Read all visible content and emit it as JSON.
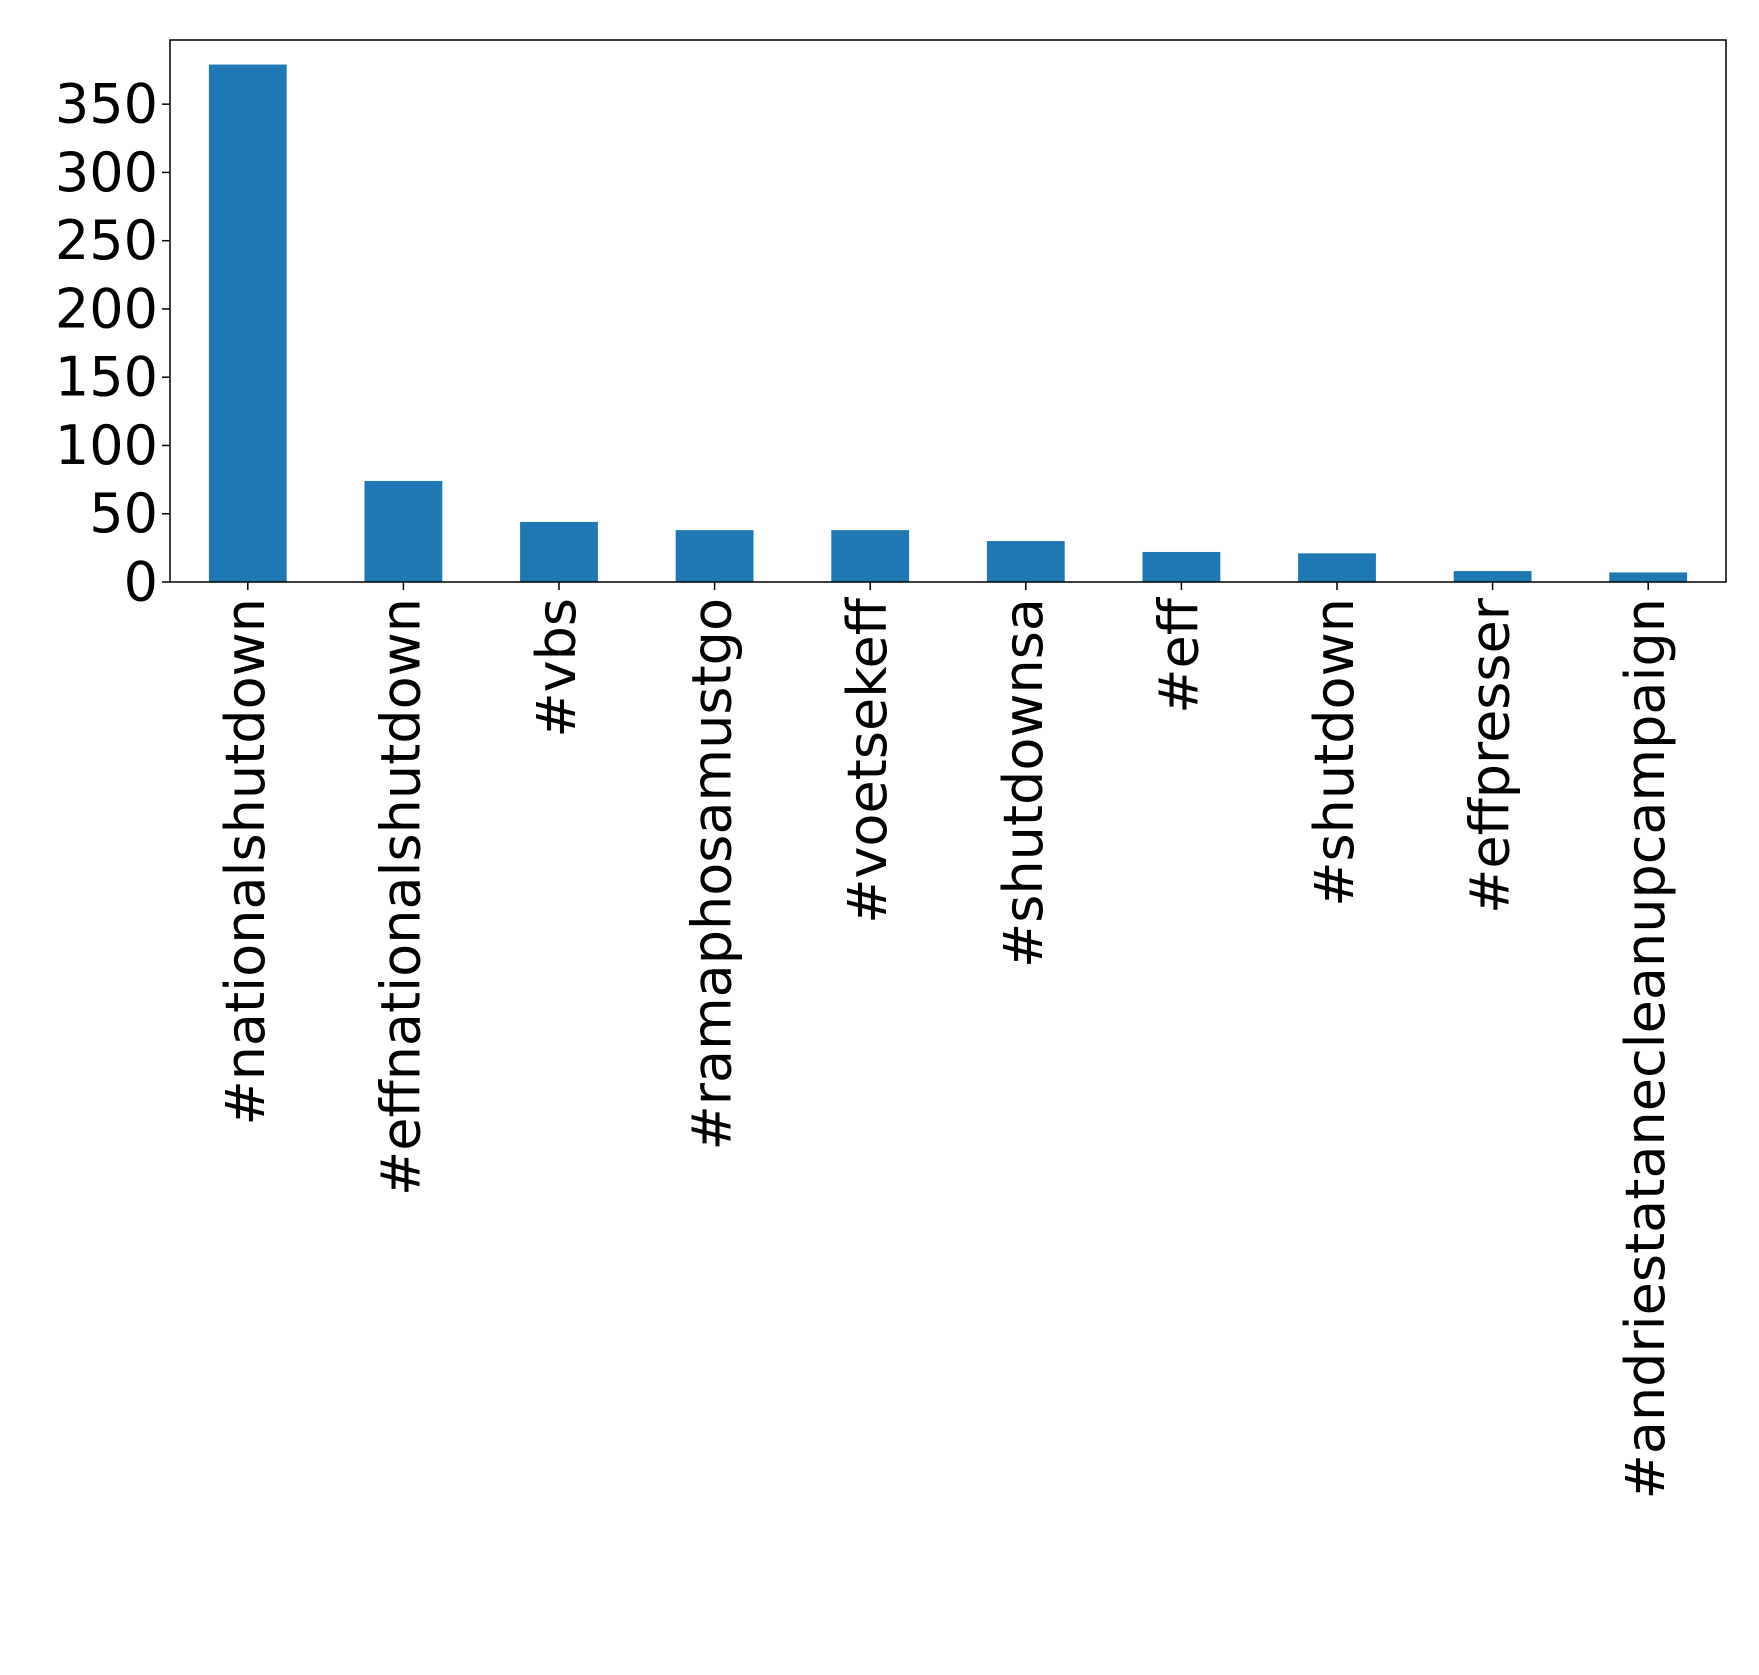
{
  "chart_data": {
    "type": "bar",
    "title": "",
    "xlabel": "",
    "ylabel": "",
    "categories": [
      "#nationalshutdown",
      "#effnationalshutdown",
      "#vbs",
      "#ramaphosamustgo",
      "#voetsekeff",
      "#shutdownsa",
      "#eff",
      "#shutdown",
      "#effpresser",
      "#andriestatanecleanupcampaign"
    ],
    "values": [
      379,
      74,
      44,
      38,
      38,
      30,
      22,
      21,
      8,
      7
    ],
    "ylim": [
      0,
      397
    ],
    "yticks": [
      0,
      50,
      100,
      150,
      200,
      250,
      300,
      350
    ],
    "grid": false,
    "legend": "none",
    "bar_color": "#1f77b4"
  }
}
